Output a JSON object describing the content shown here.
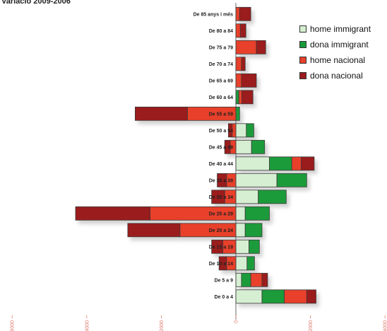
{
  "chart_data": {
    "type": "bar",
    "title": "Variació 2009-2006",
    "categories": [
      "De 85 anys i més",
      "De 80 a 84",
      "De 75 a 79",
      "De 70 a 74",
      "De 65 a 69",
      "De 60 a 64",
      "De 55 a 59",
      "De 50 a 54",
      "De 45 a 49",
      "De 40 a 44",
      "De 35 a 39",
      "De 30 a 34",
      "De 25 a 29",
      "De 20 a 24",
      "De 15 a 19",
      "De 10 a 14",
      "De 5 a 9",
      "De 0 a 4"
    ],
    "series": [
      {
        "name": "home immigrant",
        "color": "#d6efd2",
        "values": [
          0,
          0,
          0,
          0,
          0,
          0,
          0,
          280,
          420,
          900,
          1100,
          600,
          250,
          250,
          350,
          300,
          150,
          700
        ]
      },
      {
        "name": "dona immigrant",
        "color": "#1a9b3a",
        "values": [
          0,
          0,
          0,
          0,
          0,
          80,
          100,
          200,
          350,
          600,
          800,
          750,
          650,
          450,
          280,
          200,
          250,
          600
        ]
      },
      {
        "name": "home nacional",
        "color": "#e8412c",
        "values": [
          100,
          120,
          550,
          150,
          150,
          80,
          -1300,
          -100,
          -150,
          250,
          -250,
          -300,
          -2300,
          -1500,
          -350,
          -250,
          300,
          600
        ]
      },
      {
        "name": "dona nacional",
        "color": "#9b1b1e",
        "values": [
          300,
          150,
          250,
          100,
          400,
          300,
          -1400,
          -100,
          -150,
          350,
          -250,
          -350,
          -2000,
          -1400,
          -300,
          -200,
          150,
          250
        ]
      }
    ],
    "x_ticks": [
      -6000,
      -4000,
      -2000,
      0,
      2000,
      4000
    ],
    "xlim": [
      -6000,
      4000
    ],
    "grid": false,
    "legend_position": "top-right"
  }
}
